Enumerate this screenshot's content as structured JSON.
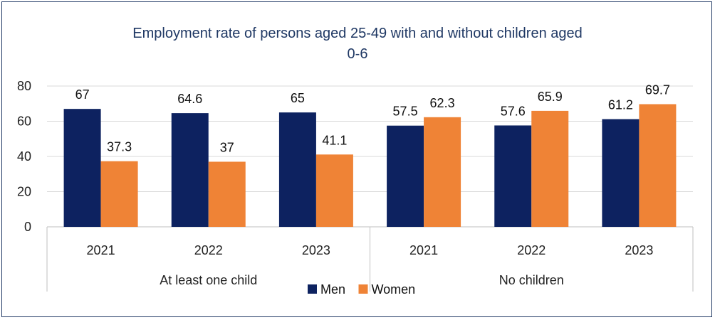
{
  "chart_data": {
    "type": "bar",
    "title_line1": "Employment rate of persons aged 25-49 with and without children aged",
    "title_line2": "0-6",
    "groups": [
      {
        "label": "At least one child",
        "categories": [
          "2021",
          "2022",
          "2023"
        ]
      },
      {
        "label": "No children",
        "categories": [
          "2021",
          "2022",
          "2023"
        ]
      }
    ],
    "series": [
      {
        "name": "Men",
        "color": "#0d2260",
        "values": [
          67,
          64.6,
          65,
          57.5,
          57.6,
          61.2
        ]
      },
      {
        "name": "Women",
        "color": "#ef8336",
        "values": [
          37.3,
          37,
          41.1,
          62.3,
          65.9,
          69.7
        ]
      }
    ],
    "yticks": [
      0,
      20,
      40,
      60,
      80
    ],
    "ylim": [
      0,
      80
    ],
    "grid": true,
    "legend_position": "bottom"
  }
}
